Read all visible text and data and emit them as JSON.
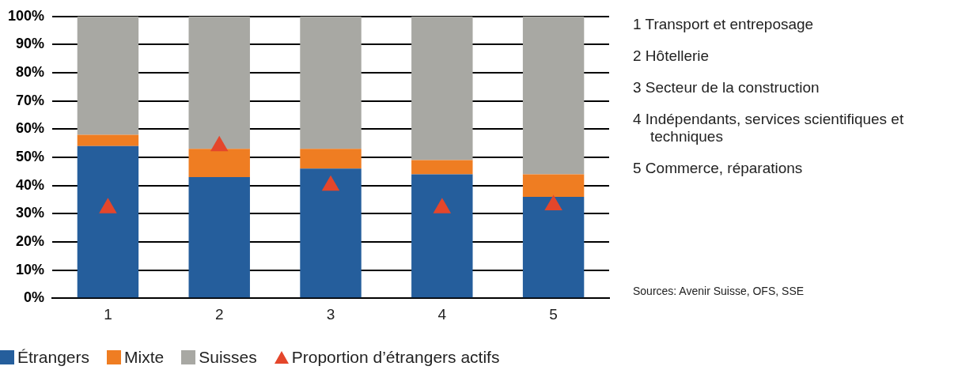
{
  "chart_data": {
    "type": "bar",
    "stacked": true,
    "categories": [
      "1",
      "2",
      "3",
      "4",
      "5"
    ],
    "series": [
      {
        "name": "Étrangers",
        "color": "#255e9c",
        "values": [
          54,
          43,
          46,
          44,
          36
        ]
      },
      {
        "name": "Mixte",
        "color": "#ef7d22",
        "values": [
          4,
          10,
          7,
          5,
          8
        ]
      },
      {
        "name": "Suisses",
        "color": "#a8a8a3",
        "values": [
          42,
          47,
          47,
          51,
          56
        ]
      },
      {
        "name": "Proportion d’étrangers actifs",
        "type": "scatter",
        "marker": "triangle",
        "color": "#e4462b",
        "x": [
          "1",
          "2",
          "3",
          "4",
          "5"
        ],
        "values": [
          32,
          54,
          40,
          32,
          33
        ]
      }
    ],
    "ylim": [
      0,
      100
    ],
    "yticks": [
      {
        "value": 0,
        "label": "0%"
      },
      {
        "value": 10,
        "label": "10%"
      },
      {
        "value": 20,
        "label": "20%"
      },
      {
        "value": 30,
        "label": "30%"
      },
      {
        "value": 40,
        "label": "40%"
      },
      {
        "value": 50,
        "label": "50%"
      },
      {
        "value": 60,
        "label": "60%"
      },
      {
        "value": 70,
        "label": "70%"
      },
      {
        "value": 80,
        "label": "80%"
      },
      {
        "value": 90,
        "label": "90%"
      },
      {
        "value": 100,
        "label": "100%"
      }
    ],
    "grid": "y",
    "legend": "bottom",
    "annotations": [
      "1 Transport et entreposage",
      "2 Hôtellerie",
      "3 Secteur de la construction",
      "4 Indépendants, services scientifiques et techniques",
      "5 Commerce, réparations",
      "Sources: Avenir Suisse, OFS, SSE"
    ]
  }
}
